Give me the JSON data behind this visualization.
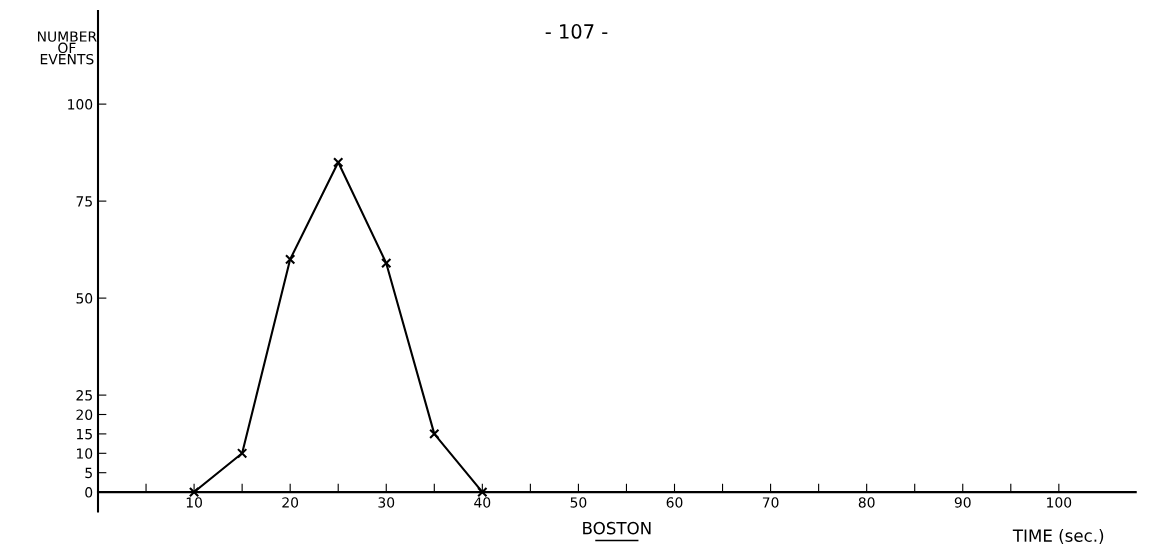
{
  "chart_data": {
    "type": "line",
    "title": "- 107 -",
    "xlabel": "TIME (sec.)",
    "ylabel": "NUMBER\nOF\nEVENTS",
    "annotations": [
      "BOSTON"
    ],
    "x": [
      10,
      15,
      20,
      25,
      30,
      35,
      40
    ],
    "series": [
      {
        "color": "#000000",
        "values": [
          0,
          10,
          60,
          85,
          59,
          15,
          0
        ]
      }
    ],
    "marker": "cross",
    "line_style": "solid",
    "grid": false,
    "legend": false,
    "xlim": [
      0,
      108
    ],
    "ylim": [
      -5,
      124
    ],
    "xticks": [
      {
        "value": 5,
        "label": null
      },
      10,
      {
        "value": 15,
        "label": null
      },
      20,
      {
        "value": 25,
        "label": null
      },
      30,
      {
        "value": 35,
        "label": null
      },
      40,
      {
        "value": 45,
        "label": null
      },
      50,
      {
        "value": 55,
        "label": null
      },
      60,
      {
        "value": 65,
        "label": null
      },
      70,
      {
        "value": 75,
        "label": null
      },
      80,
      {
        "value": 85,
        "label": null
      },
      90,
      {
        "value": 95,
        "label": null
      },
      100
    ],
    "yticks": [
      0,
      5,
      10,
      15,
      20,
      25,
      50,
      75,
      100
    ]
  }
}
